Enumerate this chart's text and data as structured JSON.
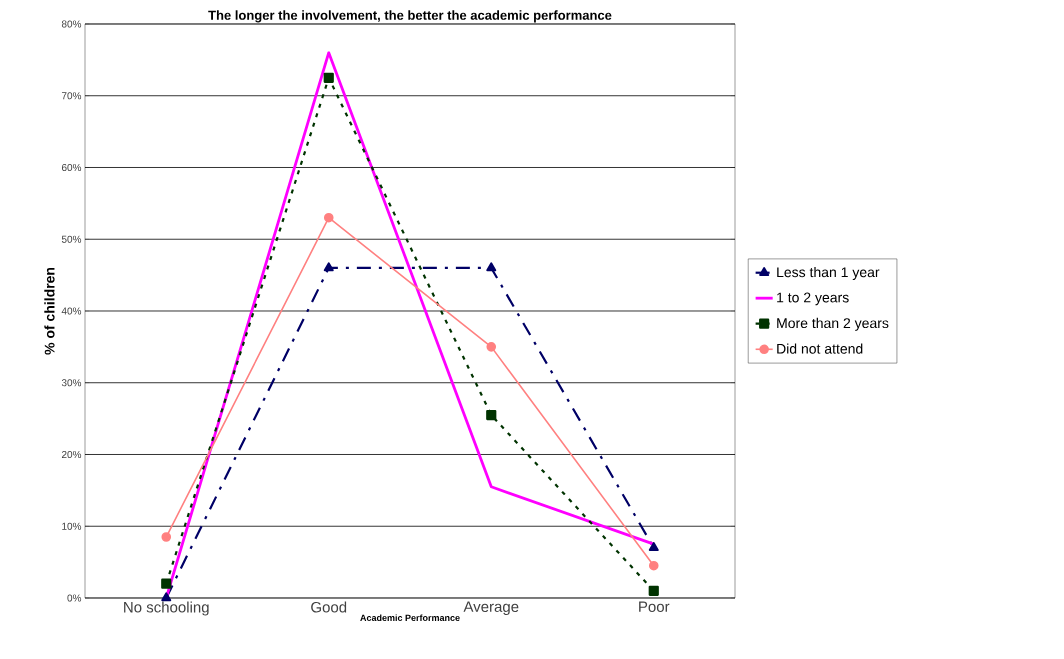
{
  "chart_data": {
    "type": "line",
    "title": "The longer the involvement, the better the academic performance",
    "xlabel": "Academic Performance",
    "ylabel": "% of children",
    "categories": [
      "No schooling",
      "Good",
      "Average",
      "Poor"
    ],
    "series": [
      {
        "name": "Less than 1 year",
        "color": "#000066",
        "values": [
          0,
          46,
          46,
          7
        ],
        "marker": "triangle",
        "line_style": "dashed"
      },
      {
        "name": "1 to 2 years",
        "color": "#ff00ff",
        "values": [
          0,
          76,
          15.5,
          7.5
        ],
        "marker": "none",
        "line_style": "solid"
      },
      {
        "name": "More than 2 years",
        "color": "#003300",
        "values": [
          2,
          72.5,
          25.5,
          1
        ],
        "marker": "square",
        "line_style": "dotted"
      },
      {
        "name": "Did not attend",
        "color": "#ff8080",
        "values": [
          8.5,
          53,
          35,
          4.5
        ],
        "marker": "circle",
        "line_style": "solid"
      }
    ],
    "ylim": [
      0,
      80
    ],
    "yticks": [
      {
        "value": 0,
        "label": "0%"
      },
      {
        "value": 10,
        "label": "10%"
      },
      {
        "value": 20,
        "label": "20%"
      },
      {
        "value": 30,
        "label": "30%"
      },
      {
        "value": 40,
        "label": "40%"
      },
      {
        "value": 50,
        "label": "50%"
      },
      {
        "value": 60,
        "label": "60%"
      },
      {
        "value": 70,
        "label": "70%"
      },
      {
        "value": 80,
        "label": "80%"
      }
    ],
    "grid": "y",
    "legend": "right"
  }
}
